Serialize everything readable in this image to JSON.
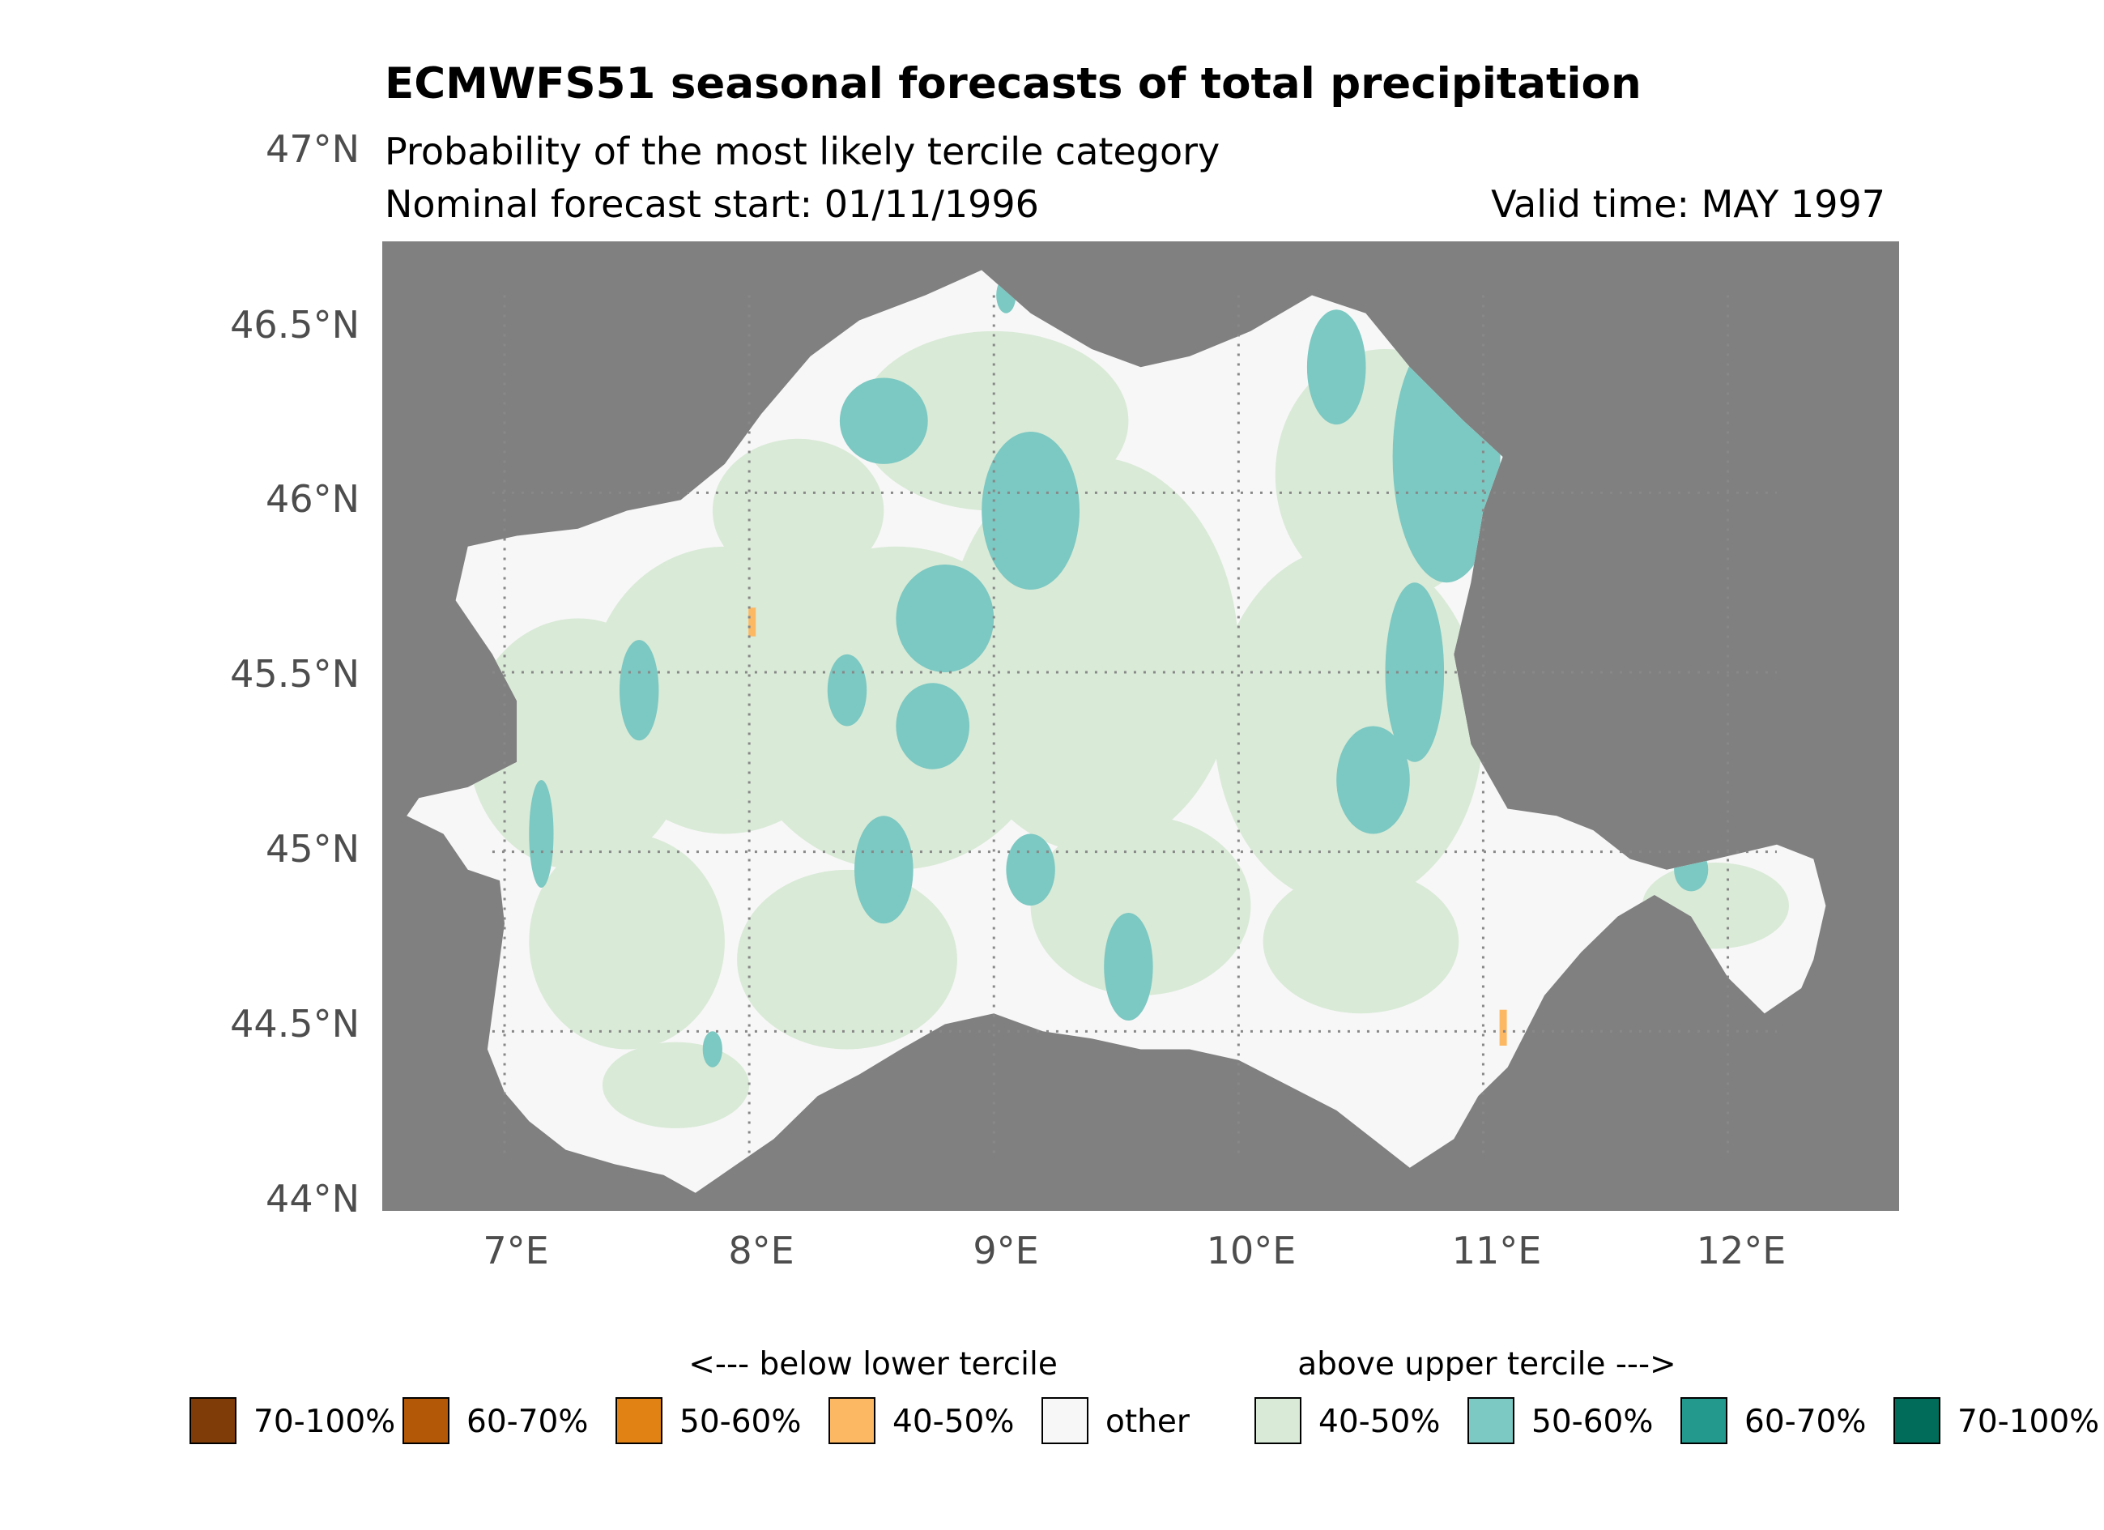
{
  "title": "ECMWFS51 seasonal forecasts of total precipitation",
  "subtitle": "Probability of the most likely tercile category",
  "forecast_start": "Nominal forecast start: 01/11/1996",
  "valid_time": "Valid time: MAY 1997",
  "map": {
    "extent": {
      "lon": [
        6.5,
        12.7
      ],
      "lat": [
        44.0,
        46.7
      ]
    },
    "background_color": "#808080",
    "graticule": {
      "lons": [
        7,
        8,
        9,
        10,
        11,
        12
      ],
      "lats": [
        44.5,
        45.0,
        45.5,
        46.0
      ],
      "style": "dotted"
    }
  },
  "axes": {
    "y_ticks": [
      "44°N",
      "44.5°N",
      "45°N",
      "45.5°N",
      "46°N",
      "46.5°N",
      "47°N"
    ],
    "x_ticks": [
      "7°E",
      "8°E",
      "9°E",
      "10°E",
      "11°E",
      "12°E"
    ]
  },
  "legend": {
    "below_label": "<--- below lower tercile",
    "above_label": "above upper tercile --->",
    "items": [
      {
        "label": "70-100%",
        "color": "#7f3b08"
      },
      {
        "label": "60-70%",
        "color": "#b35806"
      },
      {
        "label": "50-60%",
        "color": "#e08214"
      },
      {
        "label": "40-50%",
        "color": "#fdb863"
      },
      {
        "label": "other",
        "color": "#f7f7f7"
      },
      {
        "label": "40-50%",
        "color": "#d9ead7"
      },
      {
        "label": "50-60%",
        "color": "#7cc8c2"
      },
      {
        "label": "60-70%",
        "color": "#23998e"
      },
      {
        "label": "70-100%",
        "color": "#016c59"
      }
    ]
  }
}
